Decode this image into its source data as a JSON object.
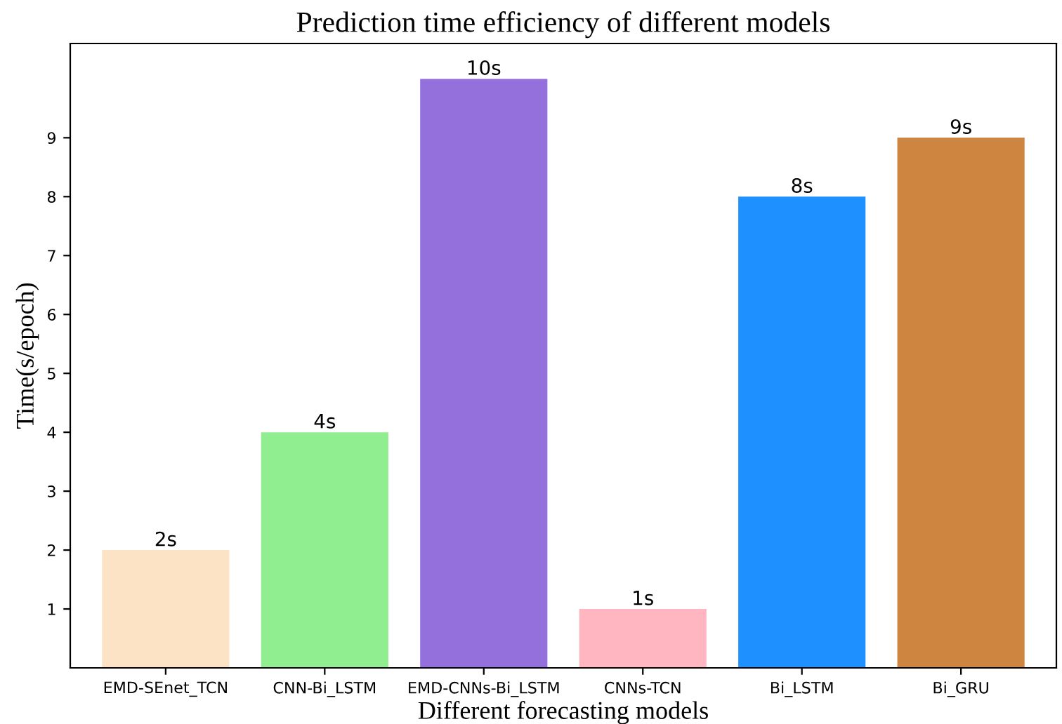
{
  "chart_data": {
    "type": "bar",
    "title": "Prediction time efficiency of different models",
    "xlabel": "Different forecasting models",
    "ylabel": "Time(s/epoch)",
    "categories": [
      "EMD-SEnet_TCN",
      "CNN-Bi_LSTM",
      "EMD-CNNs-Bi_LSTM",
      "CNNs-TCN",
      "Bi_LSTM",
      "Bi_GRU"
    ],
    "values": [
      2,
      4,
      10,
      1,
      8,
      9
    ],
    "colors": [
      "#fde3c5",
      "#90ee90",
      "#9370db",
      "#ffb6c1",
      "#1e90ff",
      "#cd853f"
    ],
    "value_labels": [
      "2s",
      "4s",
      "10s",
      "1s",
      "8s",
      "9s"
    ],
    "ylim": [
      0,
      10.6
    ],
    "yticks": [
      1,
      2,
      3,
      4,
      5,
      6,
      7,
      8,
      9
    ],
    "grid": false,
    "legend": false
  }
}
